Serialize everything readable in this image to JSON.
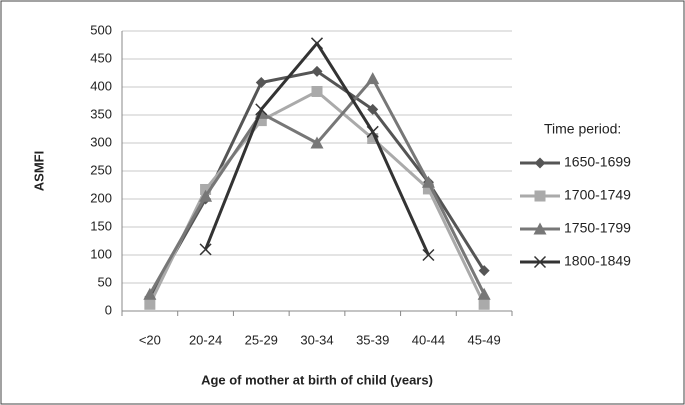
{
  "chart_data": {
    "type": "line",
    "x_label": "Age of mother at birth of child (years)",
    "y_label": "ASMFI",
    "legend_title": "Time period:",
    "legend_position": "right",
    "grid": true,
    "categories": [
      "<20",
      "20-24",
      "25-29",
      "30-34",
      "35-39",
      "40-44",
      "45-49"
    ],
    "ylim": [
      0,
      500
    ],
    "yticks": [
      0,
      50,
      100,
      150,
      200,
      250,
      300,
      350,
      400,
      450,
      500
    ],
    "series": [
      {
        "name": "1650-1699",
        "color": "#555555",
        "marker": "diamond",
        "values": [
          25,
          200,
          408,
          428,
          360,
          230,
          72
        ]
      },
      {
        "name": "1700-1749",
        "color": "#aaaaaa",
        "marker": "square",
        "values": [
          12,
          217,
          340,
          392,
          308,
          218,
          12
        ]
      },
      {
        "name": "1750-1799",
        "color": "#777777",
        "marker": "triangle",
        "values": [
          30,
          205,
          353,
          300,
          415,
          230,
          30
        ]
      },
      {
        "name": "1800-1849",
        "color": "#333333",
        "marker": "x",
        "values": [
          null,
          110,
          360,
          478,
          320,
          100,
          null
        ]
      }
    ]
  }
}
